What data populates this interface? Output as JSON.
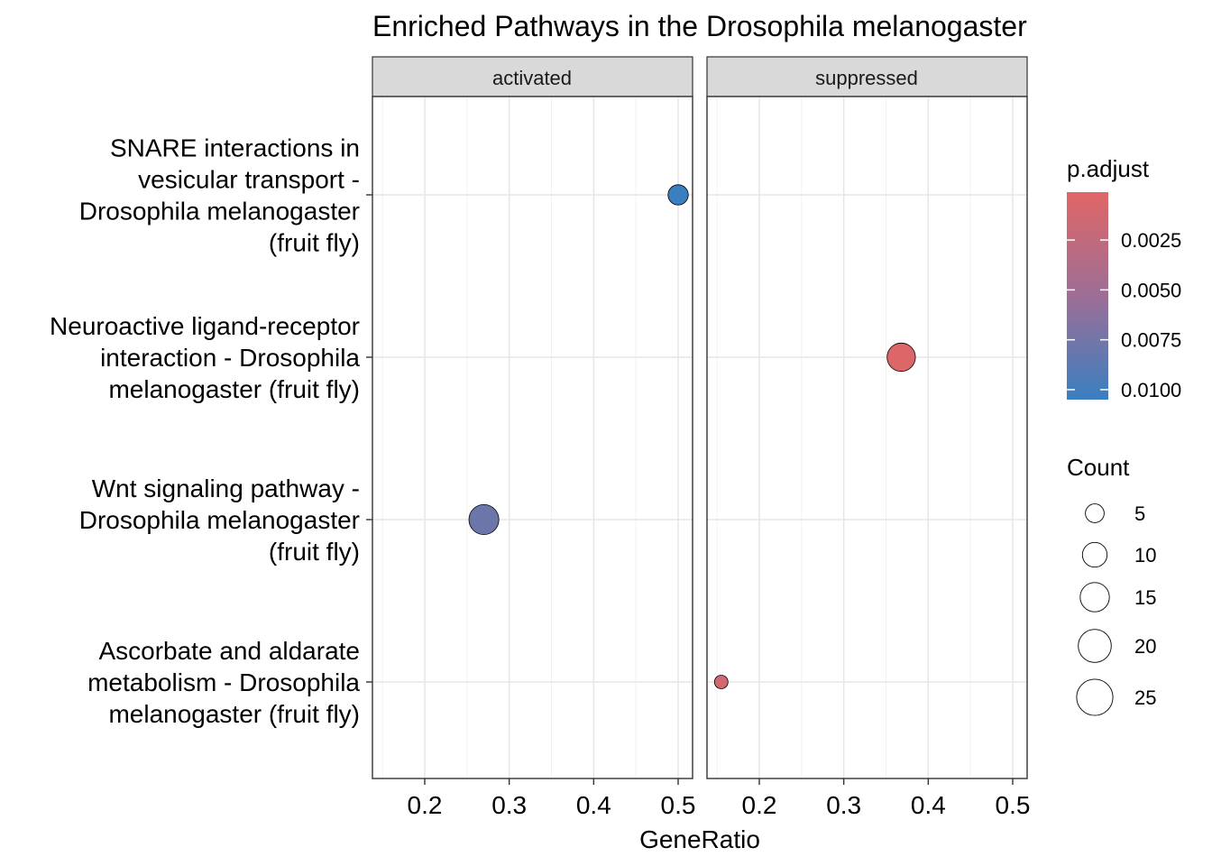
{
  "chart_data": {
    "type": "scatter",
    "title": "Enriched Pathways in the Drosophila melanogaster",
    "xlabel": "GeneRatio",
    "ylabel": "",
    "xlim": [
      0.14,
      0.52
    ],
    "x_ticks": [
      "0.2",
      "0.3",
      "0.4",
      "0.5"
    ],
    "panels": [
      "activated",
      "suppressed"
    ],
    "categories": [
      [
        "SNARE interactions in",
        "vesicular transport -",
        "Drosophila melanogaster",
        "(fruit fly)"
      ],
      [
        "Neuroactive ligand-receptor",
        "interaction - Drosophila",
        "melanogaster (fruit fly)"
      ],
      [
        "Wnt signaling pathway -",
        "Drosophila melanogaster",
        "(fruit fly)"
      ],
      [
        "Ascorbate and aldarate",
        "metabolism - Drosophila",
        "melanogaster (fruit fly)"
      ]
    ],
    "points": [
      {
        "panel": "activated",
        "category_index": 0,
        "x": 0.5,
        "count": 6,
        "p_adjust": 0.0105
      },
      {
        "panel": "suppressed",
        "category_index": 1,
        "x": 0.368,
        "count": 14,
        "p_adjust": 0.0003
      },
      {
        "panel": "activated",
        "category_index": 2,
        "x": 0.27,
        "count": 16,
        "p_adjust": 0.0078
      },
      {
        "panel": "suppressed",
        "category_index": 3,
        "x": 0.155,
        "count": 2,
        "p_adjust": 0.0012
      }
    ],
    "color_legend": {
      "title": "p.adjust",
      "labels": [
        "0.0025",
        "0.0050",
        "0.0075",
        "0.0100"
      ],
      "values": [
        0.0025,
        0.005,
        0.0075,
        0.01
      ],
      "range": [
        0.0001,
        0.0105
      ],
      "low_color": "#e06666",
      "high_color": "#3a7fc0"
    },
    "size_legend": {
      "title": "Count",
      "values": [
        5,
        10,
        15,
        20,
        25
      ],
      "labels": [
        "5",
        "10",
        "15",
        "20",
        "25"
      ]
    },
    "grid": true,
    "legend_position": "right"
  }
}
